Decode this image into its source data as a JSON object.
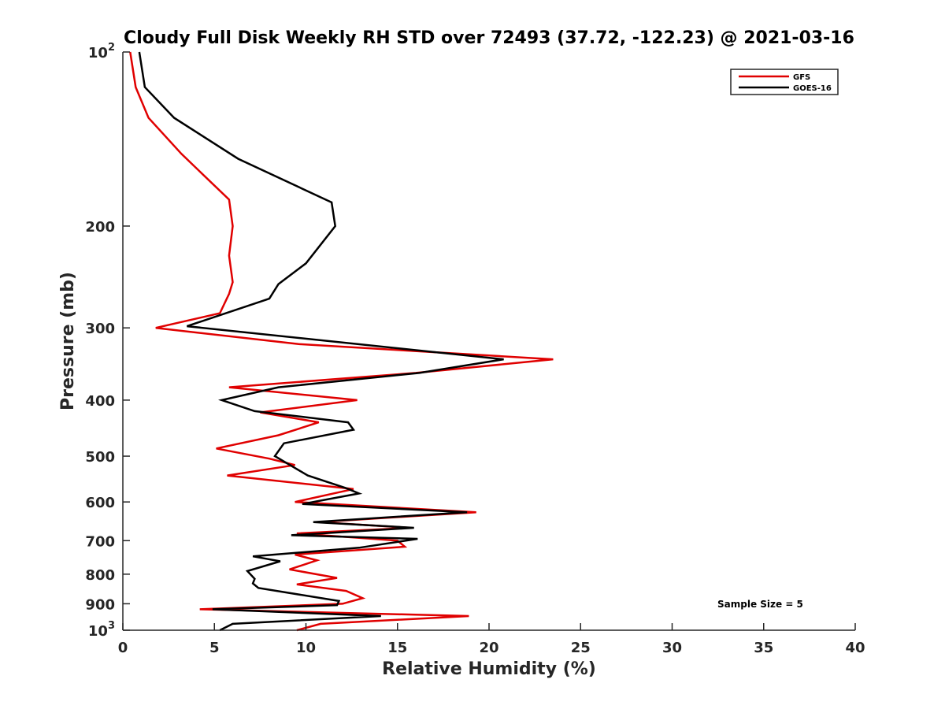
{
  "chart_data": {
    "type": "line",
    "title": "Cloudy Full Disk Weekly RH STD over 72493 (37.72, -122.23) @ 2021-03-16",
    "xlabel": "Relative Humidity (%)",
    "ylabel": "Pressure (mb)",
    "xlim": [
      0,
      40
    ],
    "ylim": [
      100,
      1000
    ],
    "y_scale": "log",
    "y_reversed": true,
    "grid": false,
    "legend_position": "top-right",
    "x_ticks": [
      0,
      5,
      10,
      15,
      20,
      25,
      30,
      35,
      40
    ],
    "x_tick_labels": [
      "0",
      "5",
      "10",
      "15",
      "20",
      "25",
      "30",
      "35",
      "40"
    ],
    "y_ticks": [
      100,
      200,
      300,
      400,
      500,
      600,
      700,
      800,
      900,
      1000
    ],
    "y_tick_labels": [
      {
        "base": "10",
        "exp": "2"
      },
      {
        "base": "200",
        "exp": ""
      },
      {
        "base": "300",
        "exp": ""
      },
      {
        "base": "400",
        "exp": ""
      },
      {
        "base": "500",
        "exp": ""
      },
      {
        "base": "600",
        "exp": ""
      },
      {
        "base": "700",
        "exp": ""
      },
      {
        "base": "800",
        "exp": ""
      },
      {
        "base": "900",
        "exp": ""
      },
      {
        "base": "10",
        "exp": "3"
      }
    ],
    "annotation": "Sample Size = 5",
    "series": [
      {
        "name": "GFS",
        "color": "#e00000",
        "points": [
          [
            0.4,
            100
          ],
          [
            0.7,
            115
          ],
          [
            1.4,
            130
          ],
          [
            3.2,
            150
          ],
          [
            5.8,
            180
          ],
          [
            6.0,
            200
          ],
          [
            5.8,
            225
          ],
          [
            6.0,
            250
          ],
          [
            5.8,
            262
          ],
          [
            5.3,
            283
          ],
          [
            1.8,
            300
          ],
          [
            9.6,
            320
          ],
          [
            23.5,
            340
          ],
          [
            16.0,
            359
          ],
          [
            5.8,
            380
          ],
          [
            12.8,
            400
          ],
          [
            7.5,
            420
          ],
          [
            10.7,
            437
          ],
          [
            8.5,
            460
          ],
          [
            5.1,
            485
          ],
          [
            8.0,
            505
          ],
          [
            9.4,
            518
          ],
          [
            5.7,
            540
          ],
          [
            12.6,
            570
          ],
          [
            9.4,
            600
          ],
          [
            19.3,
            625
          ],
          [
            10.7,
            650
          ],
          [
            15.7,
            665
          ],
          [
            9.5,
            680
          ],
          [
            15.0,
            700
          ],
          [
            15.4,
            717
          ],
          [
            9.4,
            740
          ],
          [
            10.6,
            757
          ],
          [
            9.1,
            785
          ],
          [
            11.7,
            812
          ],
          [
            9.5,
            833
          ],
          [
            12.2,
            855
          ],
          [
            13.1,
            880
          ],
          [
            12.0,
            900
          ],
          [
            4.2,
            920
          ],
          [
            18.9,
            945
          ],
          [
            10.8,
            975
          ],
          [
            9.5,
            1000
          ]
        ]
      },
      {
        "name": "GOES-16",
        "color": "#000000",
        "points": [
          [
            0.9,
            100
          ],
          [
            1.2,
            115
          ],
          [
            2.8,
            130
          ],
          [
            6.3,
            153
          ],
          [
            11.4,
            182
          ],
          [
            11.6,
            200
          ],
          [
            10.0,
            232
          ],
          [
            8.5,
            252
          ],
          [
            8.0,
            267
          ],
          [
            3.5,
            298
          ],
          [
            20.8,
            340
          ],
          [
            16.2,
            359
          ],
          [
            8.5,
            380
          ],
          [
            5.4,
            400
          ],
          [
            7.2,
            418
          ],
          [
            12.3,
            437
          ],
          [
            12.6,
            450
          ],
          [
            8.8,
            475
          ],
          [
            8.3,
            500
          ],
          [
            10.1,
            540
          ],
          [
            12.2,
            568
          ],
          [
            12.9,
            580
          ],
          [
            9.8,
            605
          ],
          [
            18.8,
            625
          ],
          [
            10.4,
            650
          ],
          [
            15.9,
            665
          ],
          [
            9.2,
            685
          ],
          [
            16.1,
            695
          ],
          [
            12.9,
            720
          ],
          [
            7.1,
            745
          ],
          [
            8.6,
            760
          ],
          [
            6.8,
            790
          ],
          [
            7.2,
            815
          ],
          [
            7.1,
            830
          ],
          [
            7.4,
            845
          ],
          [
            11.8,
            890
          ],
          [
            11.7,
            905
          ],
          [
            4.9,
            920
          ],
          [
            14.1,
            945
          ],
          [
            6.0,
            975
          ],
          [
            5.3,
            1000
          ]
        ]
      }
    ]
  }
}
